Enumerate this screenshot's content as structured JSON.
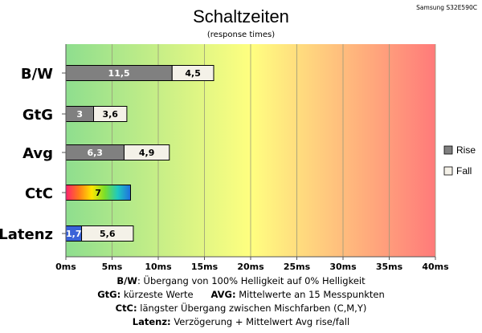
{
  "chart_data": {
    "type": "bar",
    "orientation": "horizontal",
    "stacked": true,
    "title": "Schaltzeiten",
    "subtitle": "(response times)",
    "corner_label": "Samsung S32E590C",
    "categories": [
      "B/W",
      "GtG",
      "Avg",
      "CtC",
      "Latenz"
    ],
    "series": [
      {
        "name": "Rise",
        "values": [
          11.5,
          3,
          6.3,
          null,
          null
        ],
        "labels": [
          "11,5",
          "3",
          "6,3",
          "",
          ""
        ],
        "color": "#808080"
      },
      {
        "name": "Fall",
        "values": [
          4.5,
          3.6,
          4.9,
          null,
          null
        ],
        "labels": [
          "4,5",
          "3,6",
          "4,9",
          "",
          ""
        ],
        "color": "#f4f1e8"
      }
    ],
    "special_bars": {
      "CtC": {
        "value": 7,
        "label": "7",
        "fill": "rainbow"
      },
      "Latenz": {
        "segments": [
          {
            "value": 1.7,
            "label": "1,7",
            "color": "#3a63d8"
          },
          {
            "value": 5.6,
            "label": "5,6",
            "color": "#f4f1e8"
          }
        ]
      }
    },
    "xlim": [
      0,
      40
    ],
    "xticks": [
      0,
      5,
      10,
      15,
      20,
      25,
      30,
      35,
      40
    ],
    "xtick_labels": [
      "0ms",
      "5ms",
      "10ms",
      "15ms",
      "20ms",
      "25ms",
      "30ms",
      "35ms",
      "40ms"
    ],
    "background_gradient": [
      "#8ede8e",
      "#ffff80",
      "#ff7a7a"
    ],
    "grid": true,
    "legend_position": "right"
  },
  "footer": {
    "line1_key": "B/W",
    "line1_text": ":  Übergang von 100% Helligkeit auf 0% Helligkeit",
    "line2_key1": "GtG:",
    "line2_text1": " kürzeste  Werte",
    "line2_key2": "AVG:",
    "line2_text2": " Mittelwerte  an 15 Messpunkten",
    "line3_key": "CtC:",
    "line3_text": " längster Übergang  zwischen Mischfarben (C,M,Y)",
    "line4_key": "Latenz:",
    "line4_text": " Verzögerung  + Mittelwert  Avg rise/fall"
  }
}
